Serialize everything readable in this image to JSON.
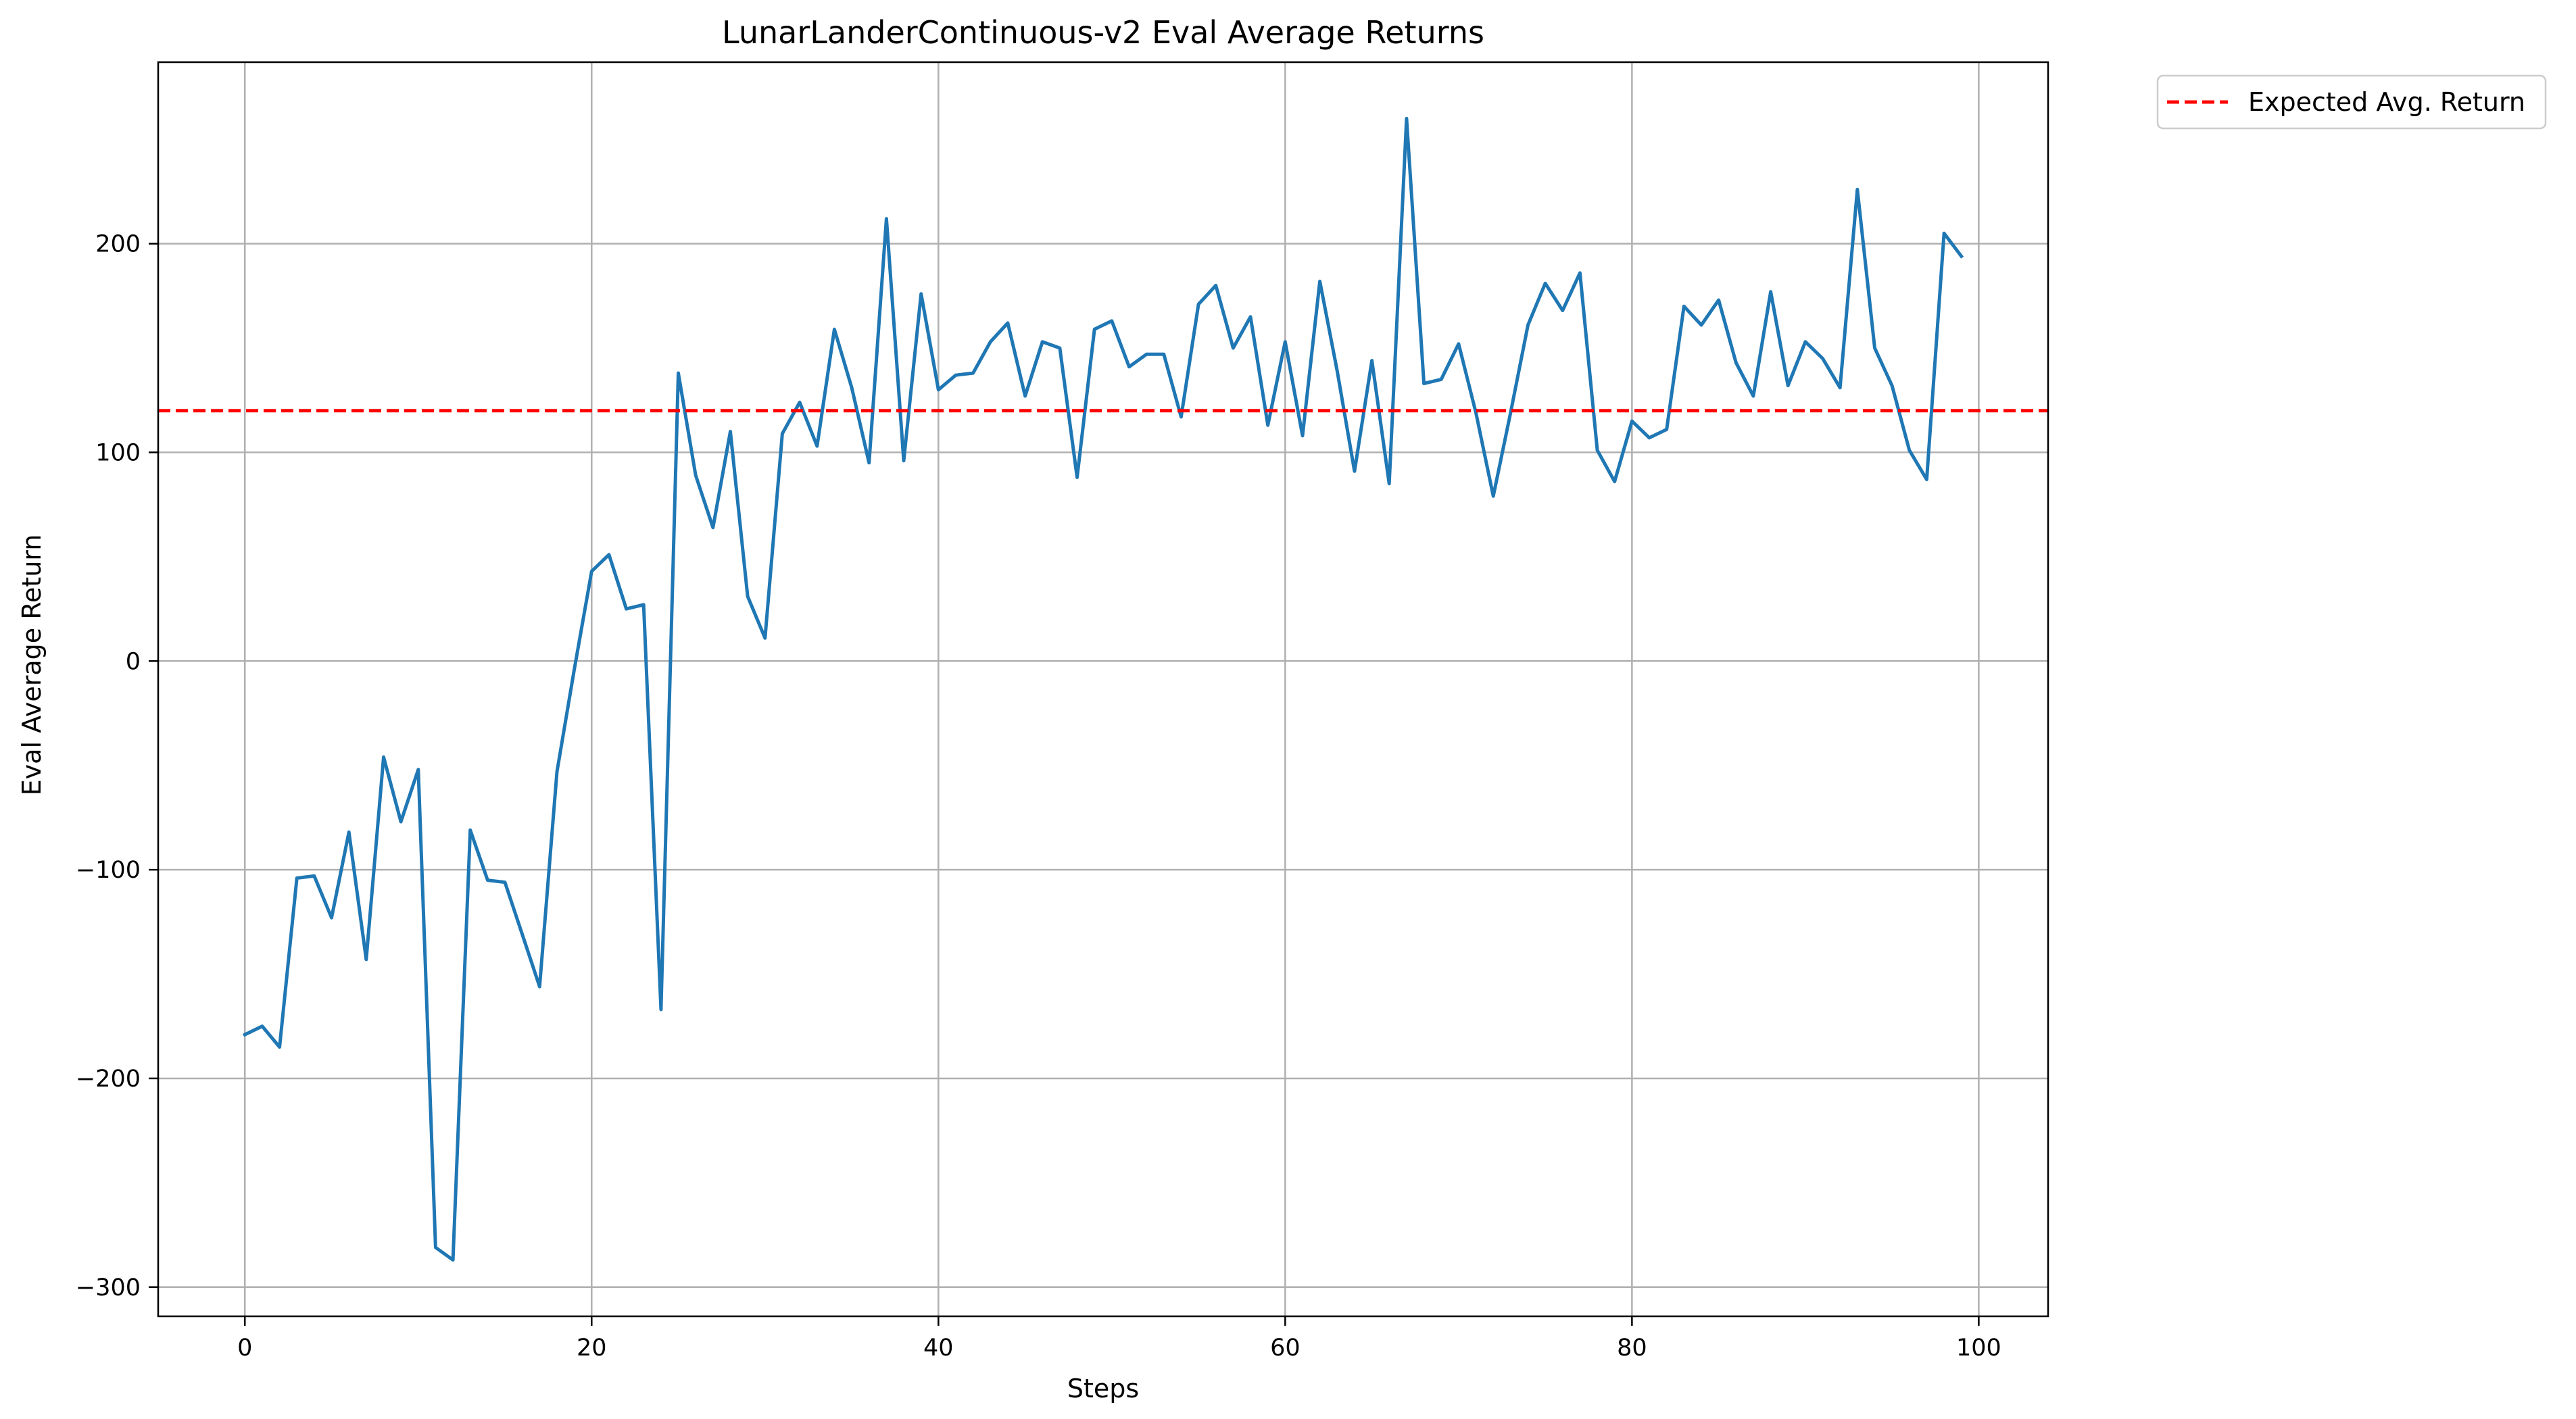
{
  "chart_data": {
    "type": "line",
    "title": "LunarLanderContinuous-v2 Eval Average Returns",
    "xlabel": "Steps",
    "ylabel": "Eval Average Return",
    "xlim": [
      -5,
      104
    ],
    "ylim": [
      -314,
      287
    ],
    "xticks": [
      0,
      20,
      40,
      60,
      80,
      100
    ],
    "yticks": [
      -300,
      -200,
      -100,
      0,
      100,
      200
    ],
    "grid": true,
    "legend_placement": "outside top-right",
    "series": [
      {
        "color": "#1f77b4",
        "x": [
          0,
          1,
          2,
          3,
          4,
          5,
          6,
          7,
          8,
          9,
          10,
          11,
          12,
          13,
          14,
          15,
          16,
          17,
          18,
          19,
          20,
          21,
          22,
          23,
          24,
          25,
          26,
          27,
          28,
          29,
          30,
          31,
          32,
          33,
          34,
          35,
          36,
          37,
          38,
          39,
          40,
          41,
          42,
          43,
          44,
          45,
          46,
          47,
          48,
          49,
          50,
          51,
          52,
          53,
          54,
          55,
          56,
          57,
          58,
          59,
          60,
          61,
          62,
          63,
          64,
          65,
          66,
          67,
          68,
          69,
          70,
          71,
          72,
          73,
          74,
          75,
          76,
          77,
          78,
          79,
          80,
          81,
          82,
          83,
          84,
          85,
          86,
          87,
          88,
          89,
          90,
          91,
          92,
          93,
          94,
          95,
          96,
          97,
          98,
          99
        ],
        "values": [
          -179,
          -175,
          -185,
          -104,
          -103,
          -123,
          -82,
          -143,
          -46,
          -77,
          -52,
          -281,
          -287,
          -81,
          -105,
          -106,
          -131,
          -156,
          -53,
          -4,
          43,
          51,
          25,
          27,
          -167,
          138,
          89,
          64,
          110,
          31,
          11,
          109,
          124,
          103,
          159,
          131,
          95,
          212,
          96,
          176,
          130,
          137,
          138,
          153,
          162,
          127,
          153,
          150,
          88,
          159,
          163,
          141,
          147,
          147,
          117,
          171,
          180,
          150,
          165,
          113,
          153,
          108,
          182,
          139,
          91,
          144,
          85,
          260,
          133,
          135,
          152,
          119,
          79,
          119,
          161,
          181,
          168,
          186,
          101,
          86,
          115,
          107,
          111,
          170,
          161,
          173,
          143,
          127,
          177,
          132,
          153,
          145,
          131,
          226,
          150,
          132,
          101,
          87,
          205,
          194
        ]
      },
      {
        "name": "Expected Avg. Return",
        "color": "#ff0000",
        "style": "dashed",
        "y": 120
      }
    ]
  }
}
